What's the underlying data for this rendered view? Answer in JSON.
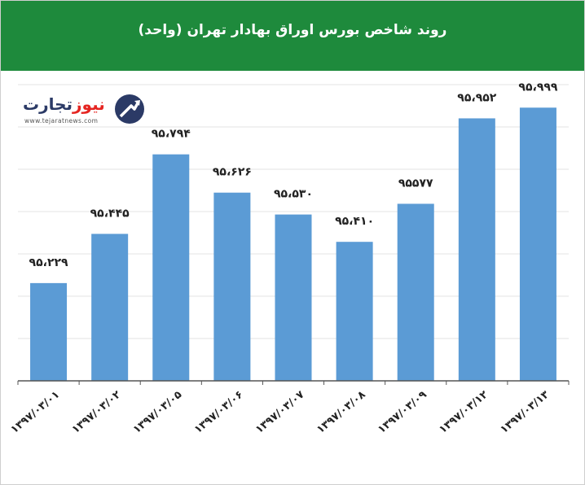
{
  "header": {
    "title": "روند شاخص بورس اوراق بهادار تهران (واحد)"
  },
  "logo": {
    "name_part1": "تجارت",
    "name_part2": "نیوز",
    "url": "www.tejaratnews.com",
    "brand_red": "#e52521",
    "brand_navy": "#2b3a66"
  },
  "colors": {
    "header_bg": "#1e8a3c",
    "bar": "#5b9bd5",
    "grid": "#e3e3e3",
    "axis": "#555555"
  },
  "chart_data": {
    "type": "bar",
    "title": "روند شاخص بورس اوراق بهادار تهران (واحد)",
    "categories": [
      "۱۳۹۷/۰۳/۰۱",
      "۱۳۹۷/۰۳/۰۲",
      "۱۳۹۷/۰۳/۰۵",
      "۱۳۹۷/۰۳/۰۶",
      "۱۳۹۷/۰۳/۰۷",
      "۱۳۹۷/۰۳/۰۸",
      "۱۳۹۷/۰۳/۰۹",
      "۱۳۹۷/۰۳/۱۲",
      "۱۳۹۷/۰۳/۱۳"
    ],
    "values": [
      95229,
      95445,
      95794,
      95626,
      95530,
      95410,
      95577,
      95952,
      95999
    ],
    "data_labels": [
      "۹۵،۲۲۹",
      "۹۵،۴۴۵",
      "۹۵،۷۹۴",
      "۹۵،۶۲۶",
      "۹۵،۵۳۰",
      "۹۵،۴۱۰",
      "۹۵۵۷۷",
      "۹۵،۹۵۲",
      "۹۵،۹۹۹"
    ],
    "ylim": [
      94800,
      96100
    ],
    "grid": true,
    "legend": "none",
    "xlabel": "",
    "ylabel": ""
  }
}
